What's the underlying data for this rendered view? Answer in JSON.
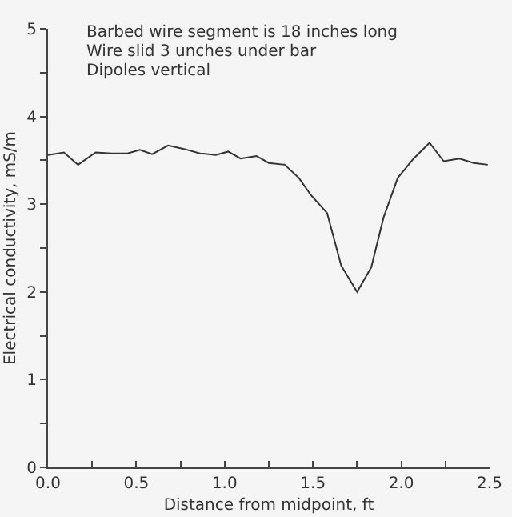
{
  "chart_data": {
    "type": "line",
    "xlabel": "Distance from midpoint, ft",
    "ylabel": "Electrical conductivity, mS/m",
    "annotations": [
      "Barbed wire segment is 18 inches long",
      "Wire slid 3 unches under bar",
      "Dipoles vertical"
    ],
    "x": [
      0,
      0.09,
      0.17,
      0.27,
      0.36,
      0.45,
      0.52,
      0.59,
      0.68,
      0.77,
      0.86,
      0.95,
      1.02,
      1.09,
      1.18,
      1.25,
      1.34,
      1.42,
      1.49,
      1.58,
      1.66,
      1.75,
      1.83,
      1.9,
      1.98,
      2.07,
      2.16,
      2.24,
      2.33,
      2.41,
      2.49
    ],
    "series": [
      {
        "color": "#333333",
        "values": [
          3.56,
          3.59,
          3.45,
          3.59,
          3.58,
          3.58,
          3.62,
          3.57,
          3.67,
          3.63,
          3.58,
          3.56,
          3.6,
          3.52,
          3.55,
          3.47,
          3.45,
          3.3,
          3.1,
          2.9,
          2.3,
          2.0,
          2.28,
          2.85,
          3.3,
          3.52,
          3.7,
          3.49,
          3.52,
          3.47,
          3.45
        ]
      }
    ],
    "xlim": [
      0,
      2.5
    ],
    "ylim": [
      0,
      5
    ],
    "xticks": [
      "0.0",
      {
        "value": 0.25,
        "label": null
      },
      {
        "value": 0.5,
        "label": "0.5"
      },
      {
        "value": 0.75,
        "label": null
      },
      {
        "value": 1,
        "label": "1.0"
      },
      {
        "value": 1.25,
        "label": null
      },
      {
        "value": 1.5,
        "label": "1.5"
      },
      {
        "value": 1.75,
        "label": null
      },
      {
        "value": 2,
        "label": "2.0"
      },
      {
        "value": 2.25,
        "label": null
      },
      {
        "value": 2.5,
        "label": "2.5"
      }
    ],
    "yticks": [
      0,
      {
        "value": 0.5,
        "label": null
      },
      1,
      {
        "value": 1.5,
        "label": null
      },
      2,
      {
        "value": 2.5,
        "label": null
      },
      3,
      {
        "value": 3.5,
        "label": null
      },
      4,
      {
        "value": 4.5,
        "label": null
      },
      5
    ],
    "grid": false,
    "legend": false,
    "marker": "none",
    "line_style": "solid"
  }
}
